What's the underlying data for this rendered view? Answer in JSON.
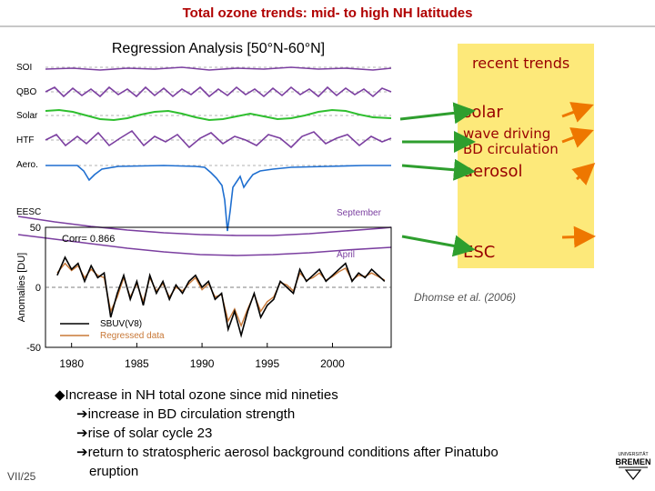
{
  "slide": {
    "title": "Total ozone trends: mid- to high NH latitudes",
    "page_number": "VII/25",
    "citation": "Dhomse et al.  (2006)",
    "logo_text": "BREMEN",
    "logo_subtext": "UNIVERSITÄT"
  },
  "annotations": {
    "header": "recent trends",
    "solar": "solar",
    "wave_line1": "wave driving",
    "wave_line2": "BD circulation",
    "aerosol": "aerosol",
    "esc": "ESC",
    "box_color": "#fde97a",
    "text_color": "#990000",
    "green_arrow_color": "#2e9e2e",
    "orange_arrow_color": "#ee7700"
  },
  "bullets": {
    "main": "Increase in NH total ozone since mid nineties",
    "sub1": "increase in BD circulation strength",
    "sub2": "rise of solar cycle 23",
    "sub3_line1": "return to stratospheric aerosol background conditions after Pinatubo",
    "sub3_line2": "eruption"
  },
  "chart_data": {
    "type": "line",
    "title": "Regression Analysis [50°N-60°N]",
    "ylabel": "Anomalies [DU]",
    "xlabel": "",
    "xlim": [
      1978,
      2004.5
    ],
    "xticks": [
      "1980",
      "1985",
      "1990",
      "1995",
      "2000"
    ],
    "ylim": [
      -50,
      50
    ],
    "yticks": [
      "50",
      "0",
      "-50"
    ],
    "component_labels": [
      "SOI",
      "QBO",
      "Solar",
      "HTF",
      "Aero.",
      "EESC"
    ],
    "eesc_labels": {
      "september": "September",
      "april": "April"
    },
    "corr_text": "Corr=  0.866",
    "legend": [
      {
        "name": "SBUV(V8)",
        "color": "#000000"
      },
      {
        "name": "Regressed data",
        "color": "#c87837"
      }
    ],
    "colors": {
      "soi": "#7b3fa0",
      "qbo": "#7b3fa0",
      "solar": "#2fbf2f",
      "htf": "#7b3fa0",
      "aero": "#1f6fd0",
      "eesc": "#7b3fa0"
    },
    "x": [
      1978.9,
      1979.5,
      1980,
      1980.5,
      1981,
      1981.5,
      1982,
      1982.5,
      1983,
      1983.5,
      1984,
      1984.5,
      1985,
      1985.5,
      1986,
      1986.5,
      1987,
      1987.5,
      1988,
      1988.5,
      1989,
      1989.5,
      1990,
      1990.5,
      1991,
      1991.5,
      1992,
      1992.5,
      1993,
      1993.5,
      1994,
      1994.5,
      1995,
      1995.5,
      1996,
      1996.5,
      1997,
      1997.5,
      1998,
      1998.5,
      1999,
      1999.5,
      2000,
      2000.5,
      2001,
      2001.5,
      2002,
      2002.5,
      2003,
      2003.5,
      2004
    ],
    "series": [
      {
        "name": "SBUV(V8)",
        "values": [
          10,
          25,
          15,
          20,
          5,
          18,
          8,
          12,
          -25,
          -5,
          10,
          -10,
          5,
          -15,
          10,
          -5,
          5,
          -10,
          2,
          -5,
          5,
          10,
          0,
          5,
          -10,
          -5,
          -35,
          -20,
          -40,
          -20,
          -5,
          -25,
          -15,
          -10,
          5,
          0,
          -5,
          15,
          5,
          10,
          15,
          5,
          10,
          15,
          20,
          5,
          12,
          8,
          15,
          10,
          5
        ]
      },
      {
        "name": "Regressed data",
        "values": [
          12,
          20,
          14,
          18,
          8,
          15,
          10,
          8,
          -20,
          -8,
          8,
          -8,
          3,
          -12,
          8,
          -3,
          3,
          -8,
          0,
          -3,
          3,
          8,
          -2,
          3,
          -8,
          -6,
          -28,
          -18,
          -32,
          -18,
          -6,
          -20,
          -12,
          -8,
          4,
          2,
          -3,
          12,
          6,
          8,
          12,
          6,
          9,
          13,
          16,
          6,
          10,
          9,
          12,
          9,
          6
        ]
      }
    ]
  }
}
